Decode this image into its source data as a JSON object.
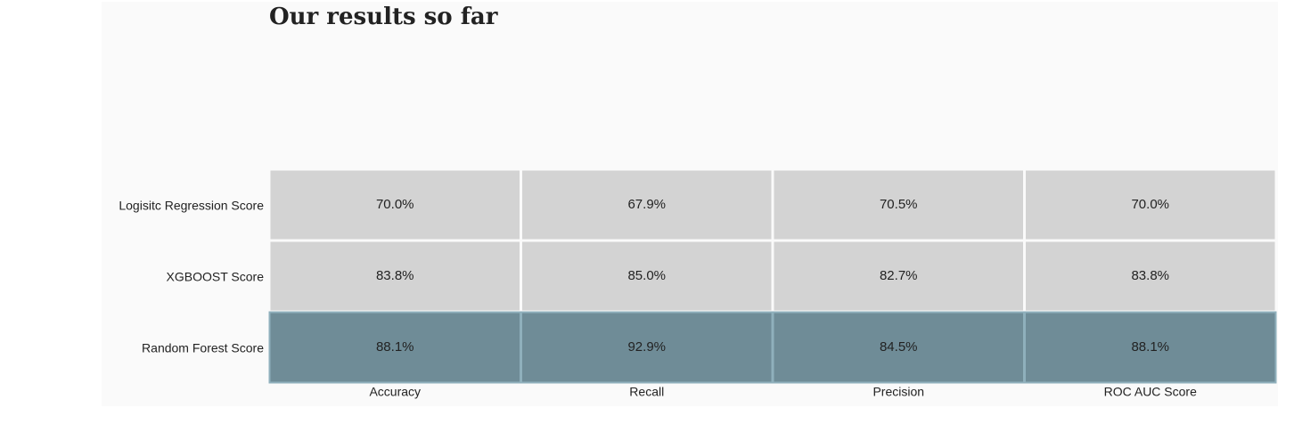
{
  "chart_data": {
    "type": "heatmap",
    "title": "Our results so far",
    "rows": [
      "Logisitc Regression Score",
      "XGBOOST Score",
      "Random Forest Score"
    ],
    "columns": [
      "Accuracy",
      "Recall",
      "Precision",
      "ROC AUC Score"
    ],
    "values": [
      [
        70.0,
        67.9,
        70.5,
        70.0
      ],
      [
        83.8,
        85.0,
        82.7,
        83.8
      ],
      [
        88.1,
        92.9,
        84.5,
        88.1
      ]
    ],
    "value_format": "percent_1dp",
    "highlighted_row": "Random Forest Score",
    "colors": {
      "default_cell": "#d3d3d3",
      "highlight_cell": "#6f8c97",
      "highlight_border": "#8fb0bc",
      "grid_line": "#ffffff",
      "background": "#fafafa",
      "text": "#222222"
    },
    "grid": false,
    "legend": "none"
  }
}
